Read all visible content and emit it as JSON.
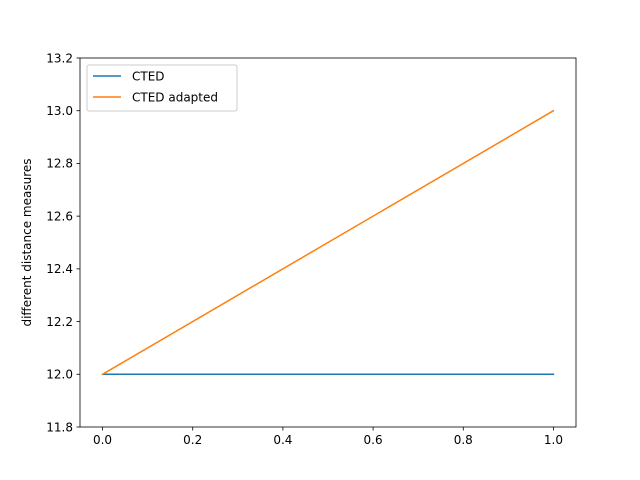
{
  "chart_data": {
    "type": "line",
    "title": "",
    "xlabel": "",
    "ylabel": "different distance measures",
    "xlim": [
      -0.05,
      1.05
    ],
    "ylim": [
      11.8,
      13.2
    ],
    "xticks": [
      0.0,
      0.2,
      0.4,
      0.6,
      0.8,
      1.0
    ],
    "xtick_labels": [
      "0.0",
      "0.2",
      "0.4",
      "0.6",
      "0.8",
      "1.0"
    ],
    "yticks": [
      11.8,
      12.0,
      12.2,
      12.4,
      12.6,
      12.8,
      13.0,
      13.2
    ],
    "ytick_labels": [
      "11.8",
      "12.0",
      "12.2",
      "12.4",
      "12.6",
      "12.8",
      "13.0",
      "13.2"
    ],
    "grid": false,
    "legend_position": "top-left",
    "series": [
      {
        "name": "CTED",
        "color": "#1f77b4",
        "x": [
          0,
          1
        ],
        "y": [
          12,
          12
        ]
      },
      {
        "name": "CTED adapted",
        "color": "#ff7f0e",
        "x": [
          0,
          1
        ],
        "y": [
          12,
          13
        ]
      }
    ]
  }
}
